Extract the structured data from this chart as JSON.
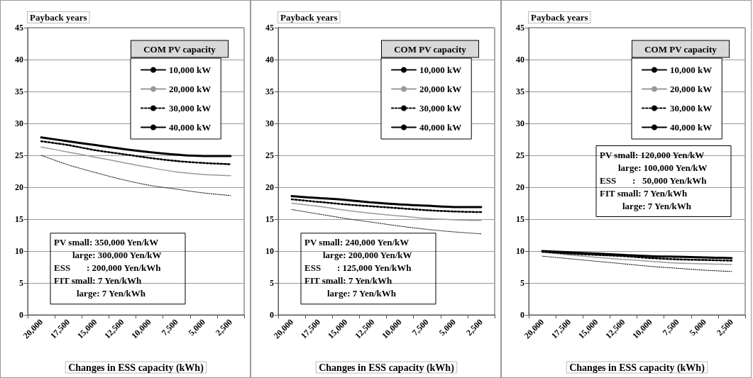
{
  "chart_data": [
    {
      "type": "line",
      "ylabel": "Payback years",
      "xlabel": "Changes in ESS capacity (kWh)",
      "legend_title": "COM PV capacity",
      "legend": "top right",
      "grid": "y",
      "categories": [
        "20,000",
        "17,500",
        "15,000",
        "12,500",
        "10,000",
        "7,500",
        "5,000",
        "2,500"
      ],
      "ylim": [
        0,
        45
      ],
      "yticks": [
        0,
        5,
        10,
        15,
        20,
        25,
        30,
        35,
        40,
        45
      ],
      "annotations": [
        "PV small: 350,000 Yen/kW",
        "large: 300,000 Yen/kW",
        "ESS       : 200,000 Yen/kWh",
        "FIT small: 7 Yen/kWh",
        "large: 7 Yen/kWh"
      ],
      "series": [
        {
          "name": "10,000 kW",
          "color": "#000000",
          "line_style": "dotted",
          "values": [
            25.0,
            23.5,
            22.3,
            21.2,
            20.3,
            19.7,
            19.1,
            18.7
          ]
        },
        {
          "name": "20,000 kW",
          "color": "#999999",
          "line_style": "solid",
          "values": [
            26.3,
            25.5,
            24.7,
            23.9,
            23.1,
            22.4,
            22.0,
            21.8
          ]
        },
        {
          "name": "30,000 kW",
          "color": "#000000",
          "line_style": "dashed",
          "values": [
            27.2,
            26.6,
            25.8,
            25.2,
            24.6,
            24.1,
            23.8,
            23.6
          ]
        },
        {
          "name": "40,000 kW",
          "color": "#000000",
          "line_style": "solid",
          "values": [
            27.8,
            27.2,
            26.6,
            26.0,
            25.5,
            25.1,
            24.9,
            24.9
          ]
        }
      ]
    },
    {
      "type": "line",
      "ylabel": "Payback years",
      "xlabel": "Changes in ESS capacity (kWh)",
      "legend_title": "COM PV capacity",
      "legend": "top right",
      "grid": "y",
      "categories": [
        "20,000",
        "17,500",
        "15,000",
        "12,500",
        "10,000",
        "7,500",
        "5,000",
        "2,500"
      ],
      "ylim": [
        0,
        45
      ],
      "yticks": [
        0,
        5,
        10,
        15,
        20,
        25,
        30,
        35,
        40,
        45
      ],
      "annotations": [
        "PV small: 240,000 Yen/kW",
        "large: 200,000 Yen/kW",
        "ESS       : 125,000 Yen/kWh",
        "FIT small: 7 Yen/kWh",
        "large: 7 Yen/kWh"
      ],
      "series": [
        {
          "name": "10,000 kW",
          "color": "#000000",
          "line_style": "dotted",
          "values": [
            16.5,
            15.8,
            15.1,
            14.5,
            13.9,
            13.4,
            13.0,
            12.7
          ]
        },
        {
          "name": "20,000 kW",
          "color": "#999999",
          "line_style": "solid",
          "values": [
            17.5,
            17.0,
            16.4,
            15.9,
            15.5,
            15.1,
            14.9,
            14.8
          ]
        },
        {
          "name": "30,000 kW",
          "color": "#000000",
          "line_style": "dashed",
          "values": [
            18.1,
            17.7,
            17.3,
            17.0,
            16.7,
            16.4,
            16.2,
            16.1
          ]
        },
        {
          "name": "40,000 kW",
          "color": "#000000",
          "line_style": "solid",
          "values": [
            18.6,
            18.3,
            18.0,
            17.6,
            17.3,
            17.1,
            16.9,
            16.9
          ]
        }
      ]
    },
    {
      "type": "line",
      "ylabel": "Payback years",
      "xlabel": "Changes in ESS capacity (kWh)",
      "legend_title": "COM PV capacity",
      "legend": "top right",
      "grid": "y",
      "categories": [
        "20,000",
        "17,500",
        "15,000",
        "12,500",
        "10,000",
        "7,500",
        "5,000",
        "2,500"
      ],
      "ylim": [
        0,
        45
      ],
      "yticks": [
        0,
        5,
        10,
        15,
        20,
        25,
        30,
        35,
        40,
        45
      ],
      "annotations": [
        "PV small: 120,000 Yen/kW",
        "large: 100,000 Yen/kW",
        "ESS       :   50,000 Yen/kWh",
        "FIT small: 7 Yen/kWh",
        "large: 7 Yen/kWh"
      ],
      "series": [
        {
          "name": "10,000 kW",
          "color": "#000000",
          "line_style": "dotted",
          "values": [
            9.2,
            8.8,
            8.4,
            8.0,
            7.6,
            7.3,
            7.0,
            6.8
          ]
        },
        {
          "name": "20,000 kW",
          "color": "#999999",
          "line_style": "solid",
          "values": [
            9.8,
            9.4,
            9.0,
            8.7,
            8.4,
            8.1,
            8.0,
            7.9
          ]
        },
        {
          "name": "30,000 kW",
          "color": "#000000",
          "line_style": "dashed",
          "values": [
            9.9,
            9.6,
            9.4,
            9.2,
            8.9,
            8.7,
            8.6,
            8.5
          ]
        },
        {
          "name": "40,000 kW",
          "color": "#000000",
          "line_style": "solid",
          "values": [
            10.0,
            9.8,
            9.6,
            9.4,
            9.2,
            9.1,
            9.0,
            8.9
          ]
        }
      ]
    }
  ]
}
